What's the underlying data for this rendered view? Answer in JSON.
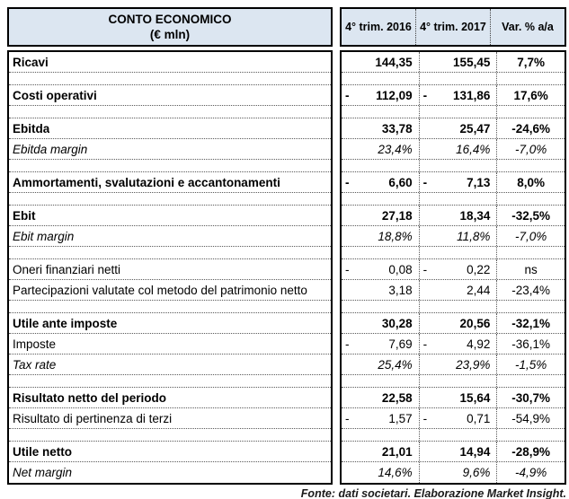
{
  "header": {
    "title_line1": "CONTO ECONOMICO",
    "title_line2": "(€ mln)",
    "columns": [
      "4° trim. 2016",
      "4° trim. 2017",
      "Var. % a/a"
    ]
  },
  "rows": [
    {
      "style": "bold",
      "label": "Ricavi",
      "s16": "",
      "v16": "144,35",
      "s17": "",
      "v17": "155,45",
      "var": "7,7%"
    },
    {
      "style": "spacer"
    },
    {
      "style": "bold",
      "label": "Costi operativi",
      "s16": "-",
      "v16": "112,09",
      "s17": "-",
      "v17": "131,86",
      "var": "17,6%"
    },
    {
      "style": "spacer"
    },
    {
      "style": "bold",
      "label": "Ebitda",
      "s16": "",
      "v16": "33,78",
      "s17": "",
      "v17": "25,47",
      "var": "-24,6%"
    },
    {
      "style": "italic",
      "label": "Ebitda margin",
      "s16": "",
      "v16": "23,4%",
      "s17": "",
      "v17": "16,4%",
      "var": "-7,0%"
    },
    {
      "style": "spacer"
    },
    {
      "style": "bold",
      "label": "Ammortamenti, svalutazioni e accantonamenti",
      "s16": "-",
      "v16": "6,60",
      "s17": "-",
      "v17": "7,13",
      "var": "8,0%"
    },
    {
      "style": "spacer"
    },
    {
      "style": "bold",
      "label": "Ebit",
      "s16": "",
      "v16": "27,18",
      "s17": "",
      "v17": "18,34",
      "var": "-32,5%"
    },
    {
      "style": "italic",
      "label": "Ebit margin",
      "s16": "",
      "v16": "18,8%",
      "s17": "",
      "v17": "11,8%",
      "var": "-7,0%"
    },
    {
      "style": "spacer"
    },
    {
      "style": "regular",
      "label": "Oneri finanziari netti",
      "s16": "-",
      "v16": "0,08",
      "s17": "-",
      "v17": "0,22",
      "var": "ns"
    },
    {
      "style": "regular",
      "label": "Partecipazioni valutate col metodo del patrimonio netto",
      "s16": "",
      "v16": "3,18",
      "s17": "",
      "v17": "2,44",
      "var": "-23,4%"
    },
    {
      "style": "spacer"
    },
    {
      "style": "bold",
      "label": "Utile ante imposte",
      "s16": "",
      "v16": "30,28",
      "s17": "",
      "v17": "20,56",
      "var": "-32,1%"
    },
    {
      "style": "regular",
      "label": "Imposte",
      "s16": "-",
      "v16": "7,69",
      "s17": "-",
      "v17": "4,92",
      "var": "-36,1%"
    },
    {
      "style": "italic",
      "label": "Tax rate",
      "s16": "",
      "v16": "25,4%",
      "s17": "",
      "v17": "23,9%",
      "var": "-1,5%"
    },
    {
      "style": "spacer"
    },
    {
      "style": "bold",
      "label": "Risultato netto del periodo",
      "s16": "",
      "v16": "22,58",
      "s17": "",
      "v17": "15,64",
      "var": "-30,7%"
    },
    {
      "style": "regular",
      "label": "Risultato di pertinenza di terzi",
      "s16": "-",
      "v16": "1,57",
      "s17": "-",
      "v17": "0,71",
      "var": "-54,9%"
    },
    {
      "style": "spacer"
    },
    {
      "style": "bold",
      "label": "Utile netto",
      "s16": "",
      "v16": "21,01",
      "s17": "",
      "v17": "14,94",
      "var": "-28,9%"
    },
    {
      "style": "italic",
      "label": "Net margin",
      "s16": "",
      "v16": "14,6%",
      "s17": "",
      "v17": "9,6%",
      "var": "-4,9%"
    }
  ],
  "footer": {
    "source_note": "Fonte: dati societari. Elaborazione Market Insight."
  },
  "colors": {
    "header_bg": "#dce6f1",
    "border": "#000000",
    "dotted_line": "#595959",
    "text": "#000000"
  }
}
